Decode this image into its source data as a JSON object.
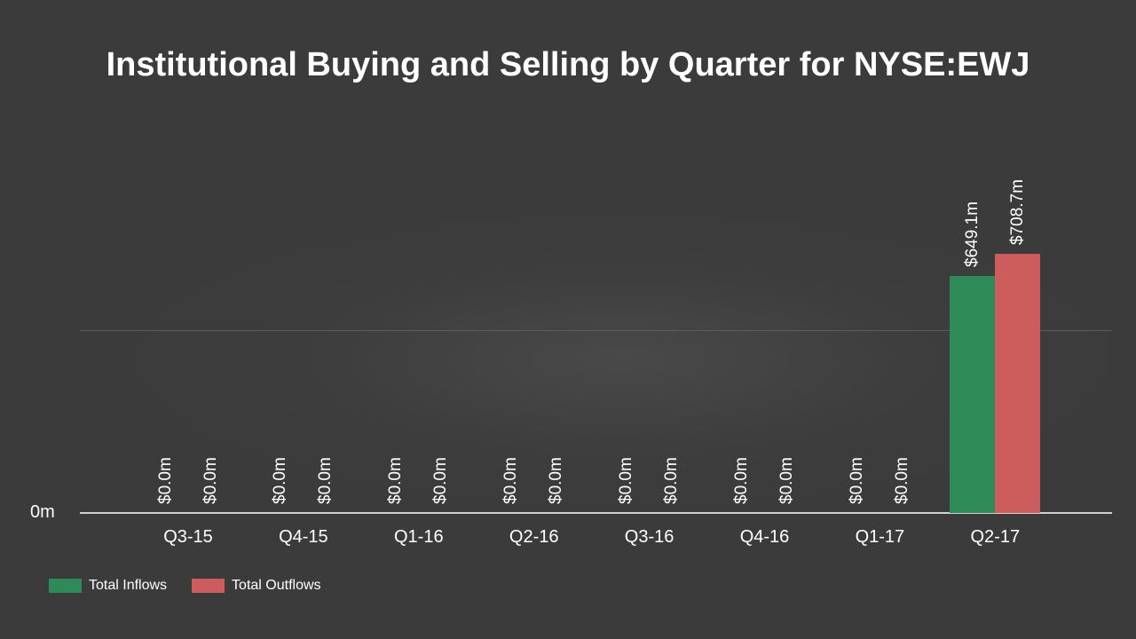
{
  "chart_data": {
    "type": "bar",
    "title": "Institutional Buying and Selling by Quarter for NYSE:EWJ",
    "xlabel": "",
    "ylabel": "",
    "categories": [
      "Q3-15",
      "Q4-15",
      "Q1-16",
      "Q2-16",
      "Q3-16",
      "Q4-16",
      "Q1-17",
      "Q2-17"
    ],
    "series": [
      {
        "name": "Total Inflows",
        "color": "#2e8b57",
        "values": [
          0.0,
          0.0,
          0.0,
          0.0,
          0.0,
          0.0,
          0.0,
          649.1
        ],
        "labels": [
          "$0.0m",
          "$0.0m",
          "$0.0m",
          "$0.0m",
          "$0.0m",
          "$0.0m",
          "$0.0m",
          "$649.1m"
        ]
      },
      {
        "name": "Total Outflows",
        "color": "#cd5c5c",
        "values": [
          0.0,
          0.0,
          0.0,
          0.0,
          0.0,
          0.0,
          0.0,
          708.7
        ],
        "labels": [
          "$0.0m",
          "$0.0m",
          "$0.0m",
          "$0.0m",
          "$0.0m",
          "$0.0m",
          "$0.0m",
          "$708.7m"
        ]
      }
    ],
    "y_tick_labels": [
      "0m"
    ],
    "gridlines_at": [
      0,
      500
    ],
    "ylim": [
      0,
      850
    ],
    "units": "millions USD",
    "grid": true,
    "legend_position": "bottom-left",
    "background": "#3b3b3b"
  },
  "title": "Institutional Buying and Selling by Quarter for NYSE:EWJ",
  "y_axis": {
    "zero_label": "0m"
  },
  "legend": {
    "inflows_label": "Total Inflows",
    "outflows_label": "Total Outflows"
  }
}
